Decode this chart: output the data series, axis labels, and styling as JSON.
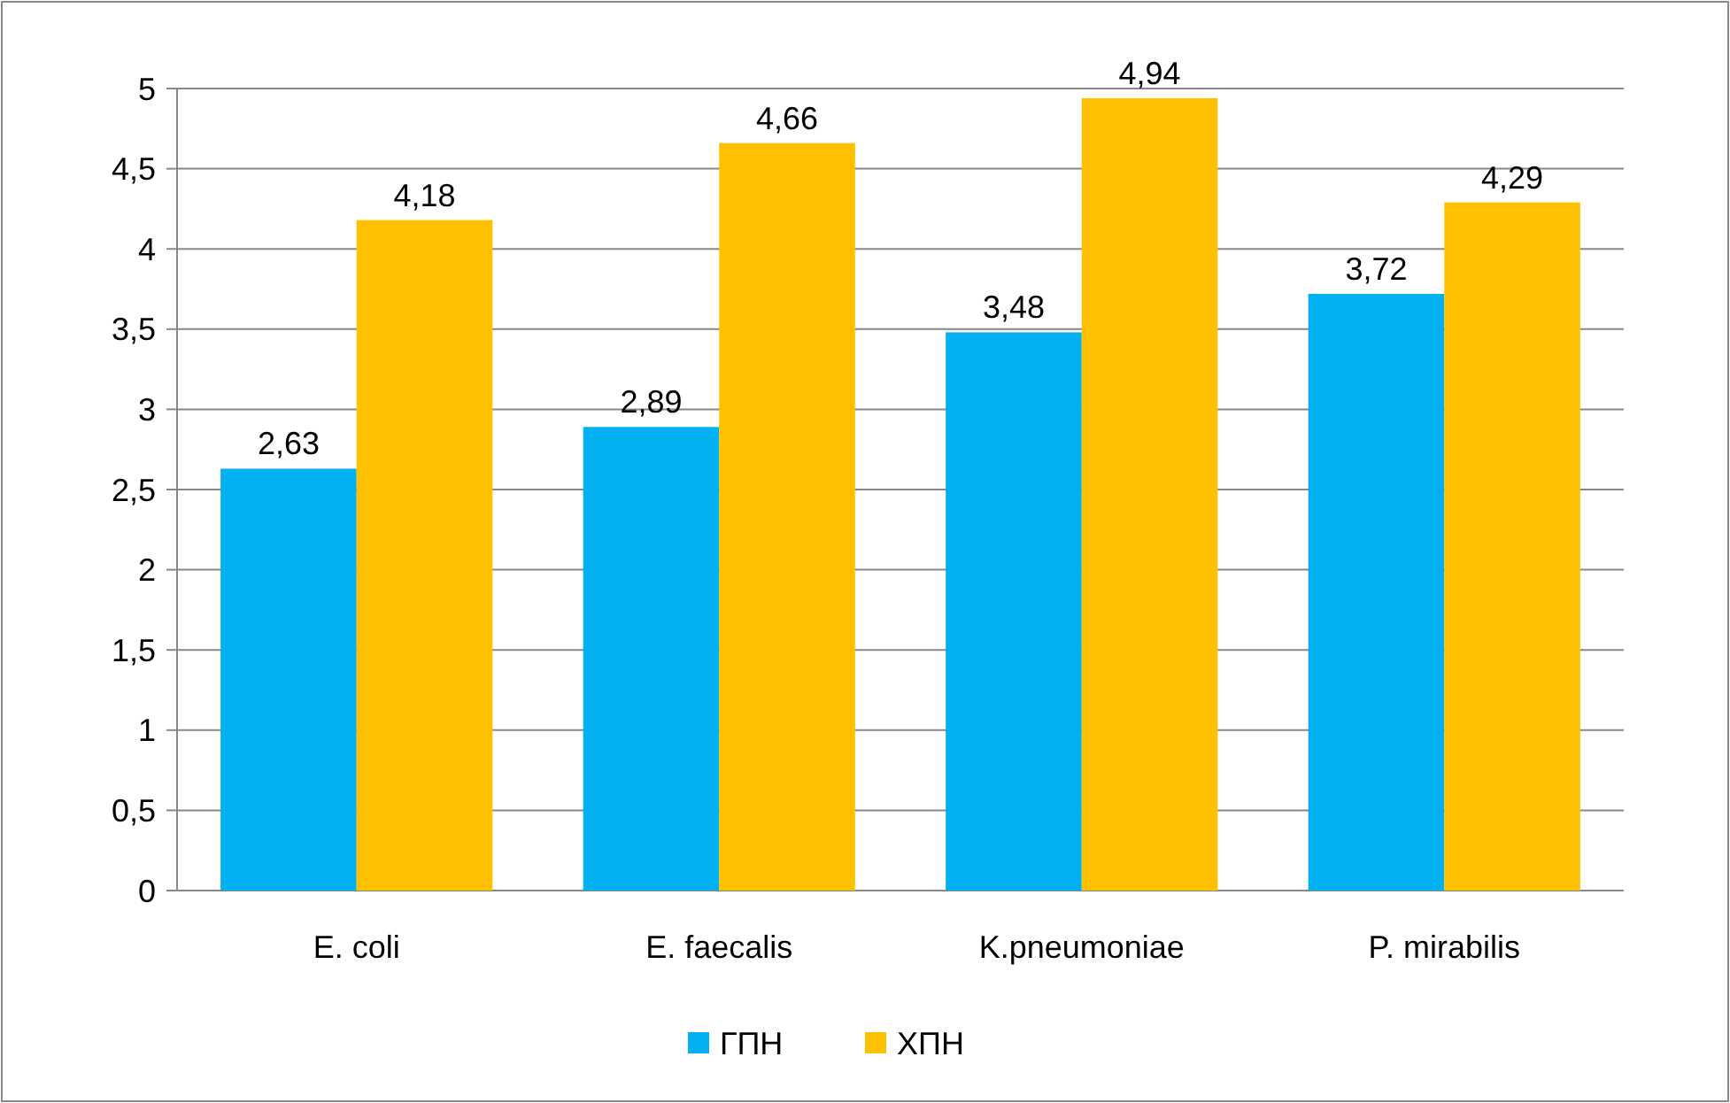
{
  "chart_data": {
    "type": "bar",
    "categories": [
      "E. coli",
      "E. faecalis",
      "K.pneumoniae",
      "P. mirabilis"
    ],
    "series": [
      {
        "name": "ГПН",
        "color": "#00b0f0",
        "values": [
          2.63,
          2.89,
          3.48,
          3.72
        ],
        "value_labels": [
          "2,63",
          "2,89",
          "3,48",
          "3,72"
        ]
      },
      {
        "name": "ХПН",
        "color": "#ffc000",
        "values": [
          4.18,
          4.66,
          4.94,
          4.29
        ],
        "value_labels": [
          "4,18",
          "4,66",
          "4,94",
          "4,29"
        ]
      }
    ],
    "ylim": [
      0,
      5
    ],
    "yticks": [
      0,
      {
        "value": 0.5,
        "label": "0,5"
      },
      1,
      {
        "value": 1.5,
        "label": "1,5"
      },
      2,
      {
        "value": 2.5,
        "label": "2,5"
      },
      3,
      {
        "value": 3.5,
        "label": "3,5"
      },
      4,
      {
        "value": 4.5,
        "label": "4,5"
      },
      5
    ],
    "grid": "y",
    "legend": "bottom"
  }
}
